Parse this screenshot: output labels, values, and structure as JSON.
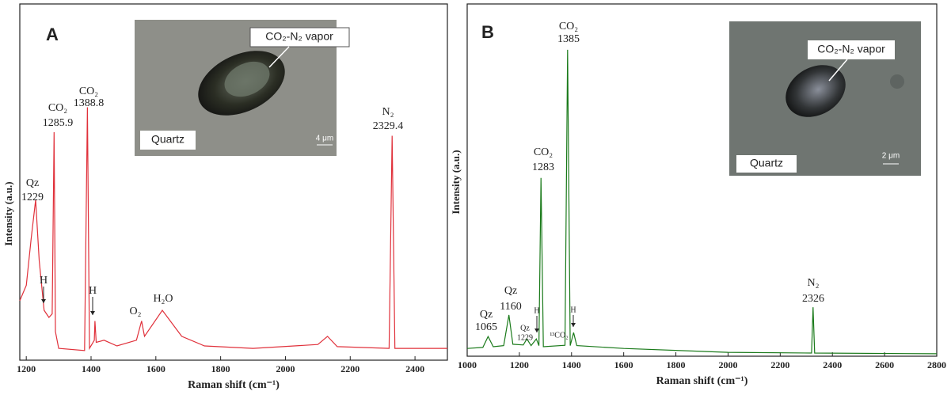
{
  "chart_data": [
    {
      "type": "line",
      "panel": "A",
      "x_label": "Raman shift (cm⁻¹)",
      "y_label": "Intensity (a.u.)",
      "xlim": [
        1180,
        2500
      ],
      "xticks": [
        1200,
        1400,
        1600,
        1800,
        2000,
        2200,
        2400
      ],
      "ylim": [
        0,
        100
      ],
      "color": "#e0303a",
      "x": [
        1180,
        1200,
        1215,
        1229,
        1240,
        1255,
        1270,
        1280,
        1285.9,
        1290,
        1300,
        1380,
        1388.8,
        1395,
        1410,
        1412,
        1416,
        1440,
        1480,
        1540,
        1556,
        1565,
        1620,
        1680,
        1750,
        1900,
        2100,
        2130,
        2160,
        2320,
        2329.4,
        2338,
        2500
      ],
      "values": [
        16.7,
        21,
        34,
        45,
        28,
        14,
        12,
        13,
        64,
        8,
        3.3,
        2.7,
        71,
        3.3,
        5.6,
        11,
        5,
        5.6,
        4,
        5.6,
        11,
        6.7,
        14,
        6.7,
        4,
        3.3,
        4.4,
        6.7,
        3.8,
        3.3,
        63,
        3.3,
        3.3
      ],
      "annotations": [
        {
          "lines": [
            "Qz",
            "1229"
          ]
        },
        {
          "lines": [
            "H"
          ]
        },
        {
          "lines": [
            "CO₂",
            "1285.9"
          ]
        },
        {
          "lines": [
            "CO₂",
            "1388.8"
          ]
        },
        {
          "lines": [
            "H"
          ]
        },
        {
          "lines": [
            "O₂"
          ]
        },
        {
          "lines": [
            "H₂O"
          ]
        },
        {
          "lines": [
            "N₂",
            "2329.4"
          ]
        }
      ],
      "inset": {
        "callout": "CO₂-N₂ vapor",
        "mineral": "Quartz",
        "scale": "4 μm"
      }
    },
    {
      "type": "line",
      "panel": "B",
      "x_label": "Raman shift (cm⁻¹)",
      "y_label": "Intensity (a.u.)",
      "xlim": [
        1000,
        2800
      ],
      "xticks": [
        1000,
        1200,
        1400,
        1600,
        1800,
        2000,
        2200,
        2400,
        2600,
        2800
      ],
      "ylim": [
        0,
        100
      ],
      "color": "#1a7a1a",
      "x": [
        1000,
        1060,
        1080,
        1100,
        1140,
        1160,
        1175,
        1215,
        1229,
        1245,
        1265,
        1275,
        1283,
        1292,
        1375,
        1385,
        1395,
        1408,
        1420,
        1600,
        2000,
        2320,
        2326,
        2332,
        2800
      ],
      "values": [
        2.2,
        2.5,
        5.6,
        2.7,
        3,
        11.7,
        3.4,
        3.2,
        4.9,
        3,
        4.9,
        3,
        50.6,
        2.7,
        3.1,
        87,
        3,
        6.7,
        3,
        2.2,
        1.1,
        0.9,
        13.9,
        0.9,
        0.7
      ],
      "annotations": [
        {
          "lines": [
            "CO₂",
            "1385"
          ]
        },
        {
          "lines": [
            "CO₂",
            "1283"
          ]
        },
        {
          "lines": [
            "Qz",
            "1160"
          ]
        },
        {
          "lines": [
            "Qz",
            "1065"
          ]
        },
        {
          "lines": [
            "H"
          ]
        },
        {
          "lines": [
            "Qz",
            "1229"
          ]
        },
        {
          "lines": [
            "¹³CO₂"
          ]
        },
        {
          "lines": [
            "H"
          ]
        },
        {
          "lines": [
            "N₂",
            "2326"
          ]
        }
      ],
      "inset": {
        "callout": "CO₂-N₂ vapor",
        "mineral": "Quartz",
        "scale": "2 μm"
      }
    }
  ]
}
